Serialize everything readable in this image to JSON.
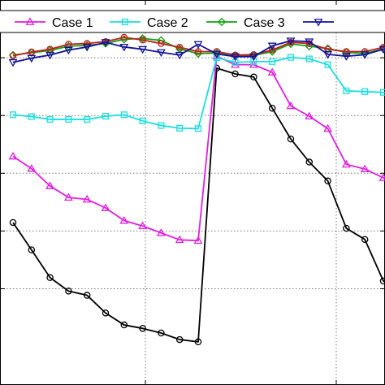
{
  "chart_data": {
    "type": "line",
    "title": "",
    "xlabel": "",
    "ylabel": "",
    "grid": true,
    "legend_position": "top",
    "xlim": [
      1,
      22
    ],
    "ylim": [
      0,
      1
    ],
    "x": [
      1,
      2,
      3,
      4,
      5,
      6,
      7,
      8,
      9,
      10,
      11,
      12,
      13,
      14,
      15,
      16,
      17,
      18,
      19,
      20,
      21,
      22
    ],
    "series": [
      {
        "name": "",
        "color": "#000000",
        "marker": "circle",
        "values": [
          0.422,
          0.351,
          0.279,
          0.244,
          0.233,
          0.187,
          0.156,
          0.147,
          0.135,
          0.118,
          0.112,
          0.823,
          0.808,
          0.8,
          0.719,
          0.639,
          0.579,
          0.53,
          0.407,
          0.378,
          0.27,
          0.238
        ]
      },
      {
        "name": "Case 1",
        "color": "#e11ee1",
        "marker": "triangle-up",
        "values": [
          0.594,
          0.562,
          0.517,
          0.487,
          0.482,
          0.46,
          0.427,
          0.413,
          0.395,
          0.377,
          0.375,
          0.854,
          0.832,
          0.832,
          0.812,
          0.725,
          0.698,
          0.666,
          0.573,
          0.561,
          0.538,
          0.516
        ]
      },
      {
        "name": "Case 2",
        "color": "#18e0e0",
        "marker": "square",
        "values": [
          0.702,
          0.697,
          0.69,
          0.69,
          0.69,
          0.698,
          0.702,
          0.686,
          0.674,
          0.667,
          0.666,
          0.85,
          0.838,
          0.84,
          0.84,
          0.851,
          0.847,
          0.832,
          0.764,
          0.762,
          0.76,
          0.748
        ]
      },
      {
        "name": "Case 3",
        "color": "#0fa40f",
        "marker": "diamond",
        "values": [
          0.857,
          0.863,
          0.869,
          0.88,
          0.882,
          0.887,
          0.898,
          0.9,
          0.895,
          0.873,
          0.861,
          0.862,
          0.855,
          0.856,
          0.866,
          0.886,
          0.88,
          0.874,
          0.864,
          0.861,
          0.873,
          0.882
        ]
      },
      {
        "name": "",
        "color": "#c41e1e",
        "marker": "circle",
        "values": [
          0.855,
          0.865,
          0.872,
          0.885,
          0.887,
          0.892,
          0.903,
          0.896,
          0.887,
          0.877,
          0.866,
          0.866,
          0.857,
          0.858,
          0.87,
          0.89,
          0.887,
          0.872,
          0.866,
          0.866,
          0.877,
          0.886
        ]
      },
      {
        "name": "",
        "color": "#12129a",
        "marker": "triangle-down",
        "values": [
          0.838,
          0.849,
          0.857,
          0.87,
          0.878,
          0.89,
          0.878,
          0.872,
          0.864,
          0.857,
          0.885,
          0.86,
          0.853,
          0.853,
          0.881,
          0.894,
          0.892,
          0.859,
          0.854,
          0.858,
          0.872,
          0.887
        ]
      }
    ]
  },
  "legend": {
    "items": [
      {
        "label": "Case 1",
        "color": "#e11ee1",
        "marker": "triangle-up"
      },
      {
        "label": "Case 2",
        "color": "#18e0e0",
        "marker": "square"
      },
      {
        "label": "Case 3",
        "color": "#0fa40f",
        "marker": "diamond"
      },
      {
        "label": "",
        "color": "#12129a",
        "marker": "triangle-down"
      }
    ]
  }
}
